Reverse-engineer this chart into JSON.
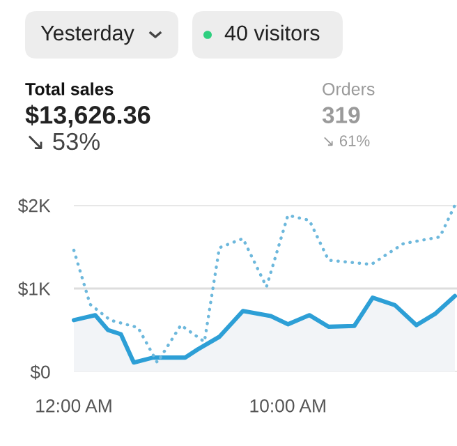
{
  "chart_data": {
    "type": "line",
    "annotations": [
      "Yesterday",
      "40 visitors",
      "Total sales",
      "$13,626.36",
      "↘ 53%",
      "Orders",
      "319",
      "↘ 61%"
    ],
    "series": [
      {
        "type": "area",
        "color": "#2d9fd6",
        "line_style": "solid",
        "x": [
          0,
          1,
          1.6,
          2.2,
          2.8,
          3.7,
          5.2,
          5.8,
          6.8,
          7.9,
          9.2,
          10,
          11,
          11.9,
          13.1,
          13.96,
          15,
          16,
          16.9,
          17.8
        ],
        "values": [
          620,
          680,
          500,
          450,
          110,
          170,
          170,
          270,
          420,
          730,
          670,
          570,
          680,
          540,
          550,
          890,
          800,
          560,
          700,
          910
        ]
      },
      {
        "type": "line",
        "color": "#6db8dc",
        "line_style": "dotted",
        "x": [
          0,
          0.76,
          1.7,
          3,
          3.9,
          5,
          6.1,
          6.8,
          7.9,
          9,
          10,
          11,
          11.9,
          13.9,
          15.4,
          17.1,
          17.8
        ],
        "values": [
          1460,
          810,
          620,
          530,
          110,
          560,
          360,
          1490,
          1600,
          1020,
          1880,
          1820,
          1340,
          1290,
          1540,
          1620,
          2000
        ]
      }
    ],
    "xlim": [
      0,
      17.9
    ],
    "xticks": [
      {
        "value": 0,
        "label": "12:00 AM"
      },
      {
        "value": 10,
        "label": "10:00 AM"
      }
    ],
    "ylim": [
      0,
      2000
    ],
    "yticks": [
      {
        "value": 0,
        "label": "$0"
      },
      {
        "value": 1000,
        "label": "$1K"
      },
      {
        "value": 2000,
        "label": "$2K"
      }
    ],
    "grid": "y",
    "legend": false
  }
}
